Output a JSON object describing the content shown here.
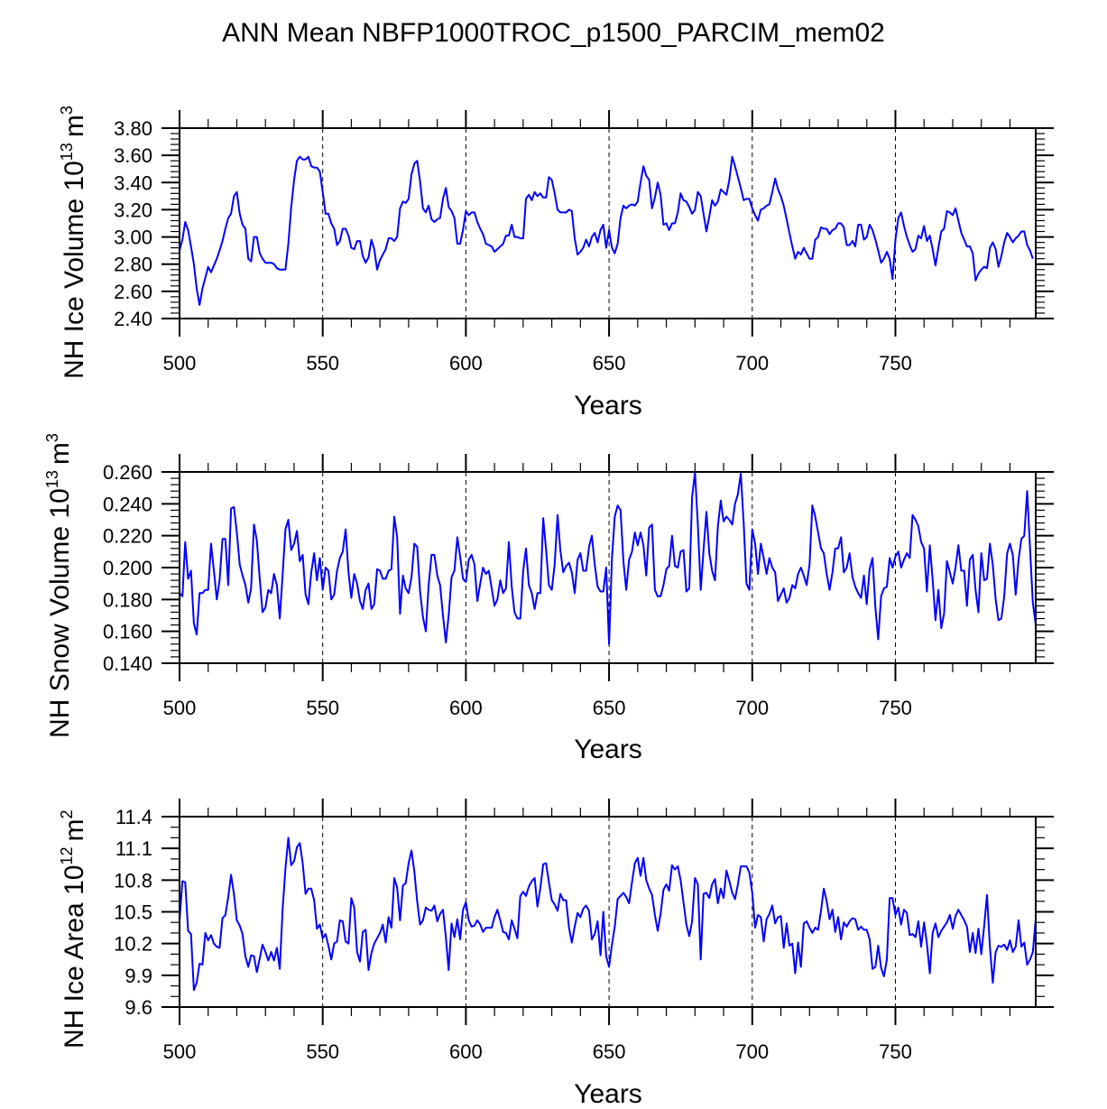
{
  "title": "ANN Mean NBFP1000TROC_p1500_PARCIM_mem02",
  "line_color": "#0000ff",
  "chart_data": [
    {
      "type": "line",
      "name": "ice-volume",
      "ylabel": {
        "text": "NH Ice Volume 10",
        "exponent": "13",
        "unit": "m",
        "unit_exponent": "3"
      },
      "xlabel": "Years",
      "xlim": [
        500,
        799
      ],
      "ylim": [
        2.4,
        3.8
      ],
      "xticks": [
        500,
        550,
        600,
        650,
        700,
        750
      ],
      "xtick_labels": [
        "500",
        "550",
        "600",
        "650",
        "700",
        "750"
      ],
      "yticks": [
        2.4,
        2.6,
        2.8,
        3.0,
        3.2,
        3.4,
        3.6,
        3.8
      ],
      "ytick_labels": [
        "2.40",
        "2.60",
        "2.80",
        "3.00",
        "3.20",
        "3.40",
        "3.60",
        "3.80"
      ],
      "yminor_step": 0.04,
      "grid": "dashed vertical at major x ticks",
      "x_start": 500,
      "values": [
        2.9,
        2.98,
        3.11,
        3.05,
        2.93,
        2.8,
        2.62,
        2.5,
        2.62,
        2.7,
        2.78,
        2.74,
        2.79,
        2.84,
        2.9,
        2.97,
        3.06,
        3.14,
        3.17,
        3.3,
        3.33,
        3.17,
        3.09,
        3.06,
        2.84,
        2.82,
        3.0,
        3.0,
        2.88,
        2.84,
        2.81,
        2.81,
        2.81,
        2.8,
        2.77,
        2.76,
        2.76,
        2.76,
        2.95,
        3.22,
        3.42,
        3.56,
        3.59,
        3.57,
        3.57,
        3.59,
        3.52,
        3.51,
        3.51,
        3.48,
        3.33,
        3.17,
        3.17,
        3.1,
        3.06,
        2.94,
        2.97,
        3.06,
        3.06,
        3.01,
        2.92,
        2.91,
        2.97,
        2.97,
        2.86,
        2.81,
        2.85,
        2.98,
        2.91,
        2.76,
        2.83,
        2.87,
        2.91,
        2.99,
        2.99,
        2.97,
        3.0,
        3.21,
        3.26,
        3.25,
        3.28,
        3.46,
        3.54,
        3.56,
        3.41,
        3.21,
        3.18,
        3.23,
        3.13,
        3.11,
        3.13,
        3.14,
        3.28,
        3.36,
        3.22,
        3.19,
        3.14,
        2.95,
        2.95,
        3.05,
        3.19,
        3.16,
        3.18,
        3.18,
        3.11,
        3.06,
        3.02,
        2.95,
        2.94,
        2.93,
        2.89,
        2.91,
        2.93,
        2.95,
        3.01,
        3.01,
        3.09,
        3.0,
        3.0,
        2.99,
        2.99,
        3.28,
        3.31,
        3.27,
        3.33,
        3.3,
        3.32,
        3.29,
        3.29,
        3.44,
        3.42,
        3.32,
        3.2,
        3.18,
        3.18,
        3.18,
        3.2,
        3.19,
        2.99,
        2.87,
        2.89,
        2.92,
        2.98,
        2.93,
        3.0,
        3.03,
        2.96,
        3.05,
        3.09,
        2.92,
        3.05,
        2.92,
        2.88,
        2.95,
        3.14,
        3.23,
        3.21,
        3.23,
        3.24,
        3.23,
        3.26,
        3.4,
        3.52,
        3.45,
        3.42,
        3.21,
        3.29,
        3.4,
        3.31,
        3.09,
        3.1,
        3.05,
        3.1,
        3.1,
        3.18,
        3.32,
        3.27,
        3.26,
        3.22,
        3.17,
        3.2,
        3.33,
        3.3,
        3.17,
        3.04,
        3.15,
        3.27,
        3.23,
        3.26,
        3.35,
        3.33,
        3.31,
        3.42,
        3.59,
        3.52,
        3.44,
        3.36,
        3.27,
        3.28,
        3.28,
        3.21,
        3.16,
        3.12,
        3.2,
        3.21,
        3.23,
        3.24,
        3.33,
        3.43,
        3.35,
        3.3,
        3.23,
        3.13,
        3.03,
        2.93,
        2.84,
        2.89,
        2.87,
        2.92,
        2.88,
        2.84,
        2.84,
        2.98,
        3.0,
        3.07,
        3.06,
        3.06,
        3.02,
        3.05,
        3.06,
        3.1,
        3.1,
        3.07,
        2.94,
        2.94,
        2.97,
        2.93,
        3.09,
        3.09,
        2.98,
        3.0,
        3.09,
        3.05,
        2.98,
        2.9,
        2.81,
        2.84,
        2.89,
        2.84,
        2.69,
        2.98,
        3.14,
        3.18,
        3.08,
        3.0,
        2.94,
        2.89,
        2.91,
        3.01,
        2.99,
        3.08,
        2.97,
        3.01,
        2.91,
        2.79,
        2.92,
        3.04,
        3.06,
        3.19,
        3.18,
        3.16,
        3.21,
        3.12,
        3.03,
        2.98,
        2.93,
        2.93,
        2.88,
        2.68,
        2.73,
        2.76,
        2.78,
        2.77,
        2.92,
        2.96,
        2.91,
        2.78,
        2.86,
        2.96,
        3.03,
        3.0,
        2.96,
        2.99,
        3.01,
        3.04,
        3.04,
        2.94,
        2.9,
        2.84
      ]
    },
    {
      "type": "line",
      "name": "snow-volume",
      "ylabel": {
        "text": "NH Snow Volume 10",
        "exponent": "13",
        "unit": "m",
        "unit_exponent": "3"
      },
      "xlabel": "Years",
      "xlim": [
        500,
        799
      ],
      "ylim": [
        0.14,
        0.26
      ],
      "xticks": [
        500,
        550,
        600,
        650,
        700,
        750
      ],
      "xtick_labels": [
        "500",
        "550",
        "600",
        "650",
        "700",
        "750"
      ],
      "yticks": [
        0.14,
        0.16,
        0.18,
        0.2,
        0.22,
        0.24,
        0.26
      ],
      "ytick_labels": [
        "0.140",
        "0.160",
        "0.180",
        "0.200",
        "0.220",
        "0.240",
        "0.260"
      ],
      "yminor_step": 0.004,
      "grid": "dashed vertical at major x ticks",
      "x_start": 500,
      "values": [
        0.184,
        0.182,
        0.216,
        0.193,
        0.198,
        0.165,
        0.158,
        0.184,
        0.184,
        0.186,
        0.186,
        0.215,
        0.198,
        0.18,
        0.192,
        0.218,
        0.218,
        0.189,
        0.237,
        0.238,
        0.222,
        0.202,
        0.195,
        0.189,
        0.178,
        0.187,
        0.227,
        0.217,
        0.193,
        0.172,
        0.175,
        0.186,
        0.184,
        0.196,
        0.189,
        0.168,
        0.196,
        0.224,
        0.23,
        0.211,
        0.215,
        0.223,
        0.204,
        0.208,
        0.183,
        0.177,
        0.197,
        0.209,
        0.192,
        0.206,
        0.186,
        0.2,
        0.198,
        0.18,
        0.183,
        0.198,
        0.206,
        0.21,
        0.224,
        0.197,
        0.181,
        0.196,
        0.19,
        0.179,
        0.174,
        0.186,
        0.19,
        0.174,
        0.177,
        0.199,
        0.198,
        0.193,
        0.193,
        0.198,
        0.199,
        0.232,
        0.219,
        0.171,
        0.195,
        0.187,
        0.184,
        0.194,
        0.215,
        0.213,
        0.185,
        0.169,
        0.16,
        0.189,
        0.208,
        0.208,
        0.195,
        0.189,
        0.17,
        0.153,
        0.17,
        0.194,
        0.198,
        0.219,
        0.207,
        0.193,
        0.191,
        0.205,
        0.208,
        0.202,
        0.179,
        0.19,
        0.2,
        0.196,
        0.198,
        0.187,
        0.176,
        0.18,
        0.192,
        0.184,
        0.187,
        0.216,
        0.188,
        0.172,
        0.168,
        0.168,
        0.198,
        0.212,
        0.189,
        0.184,
        0.174,
        0.184,
        0.184,
        0.231,
        0.211,
        0.189,
        0.186,
        0.202,
        0.233,
        0.211,
        0.197,
        0.201,
        0.203,
        0.197,
        0.184,
        0.205,
        0.209,
        0.198,
        0.198,
        0.213,
        0.22,
        0.202,
        0.188,
        0.185,
        0.185,
        0.2,
        0.152,
        0.206,
        0.232,
        0.239,
        0.236,
        0.204,
        0.186,
        0.205,
        0.21,
        0.222,
        0.214,
        0.222,
        0.214,
        0.195,
        0.225,
        0.227,
        0.186,
        0.182,
        0.182,
        0.189,
        0.199,
        0.201,
        0.22,
        0.201,
        0.2,
        0.21,
        0.211,
        0.185,
        0.187,
        0.244,
        0.26,
        0.227,
        0.186,
        0.211,
        0.235,
        0.209,
        0.198,
        0.192,
        0.226,
        0.242,
        0.229,
        0.232,
        0.23,
        0.227,
        0.24,
        0.246,
        0.259,
        0.228,
        0.19,
        0.186,
        0.224,
        0.215,
        0.196,
        0.215,
        0.206,
        0.196,
        0.206,
        0.2,
        0.197,
        0.179,
        0.183,
        0.187,
        0.178,
        0.181,
        0.189,
        0.187,
        0.196,
        0.2,
        0.195,
        0.189,
        0.202,
        0.239,
        0.232,
        0.222,
        0.212,
        0.209,
        0.196,
        0.186,
        0.197,
        0.212,
        0.212,
        0.219,
        0.197,
        0.2,
        0.209,
        0.194,
        0.188,
        0.184,
        0.181,
        0.195,
        0.177,
        0.199,
        0.206,
        0.175,
        0.155,
        0.182,
        0.187,
        0.188,
        0.206,
        0.2,
        0.207,
        0.21,
        0.2,
        0.205,
        0.209,
        0.206,
        0.233,
        0.23,
        0.226,
        0.216,
        0.212,
        0.185,
        0.214,
        0.193,
        0.167,
        0.186,
        0.162,
        0.171,
        0.204,
        0.197,
        0.19,
        0.2,
        0.214,
        0.198,
        0.198,
        0.176,
        0.205,
        0.208,
        0.186,
        0.172,
        0.209,
        0.192,
        0.193,
        0.215,
        0.202,
        0.18,
        0.167,
        0.168,
        0.182,
        0.209,
        0.215,
        0.208,
        0.183,
        0.205,
        0.218,
        0.22,
        0.248,
        0.212,
        0.178,
        0.164
      ]
    },
    {
      "type": "line",
      "name": "ice-area",
      "ylabel": {
        "text": "NH Ice Area 10",
        "exponent": "12",
        "unit": "m",
        "unit_exponent": "2"
      },
      "xlabel": "Years",
      "xlim": [
        500,
        799
      ],
      "ylim": [
        9.6,
        11.4
      ],
      "xticks": [
        500,
        550,
        600,
        650,
        700,
        750
      ],
      "xtick_labels": [
        "500",
        "550",
        "600",
        "650",
        "700",
        "750"
      ],
      "yticks": [
        9.6,
        9.9,
        10.2,
        10.5,
        10.8,
        11.1,
        11.4
      ],
      "ytick_labels": [
        "9.6",
        "9.9",
        "10.2",
        "10.5",
        "10.8",
        "11.1",
        "11.4"
      ],
      "yminor_step": 0.1,
      "grid": "dashed vertical at major x ticks",
      "x_start": 500,
      "values": [
        10.42,
        10.79,
        10.78,
        10.32,
        10.29,
        9.76,
        9.83,
        10.01,
        10.0,
        10.3,
        10.23,
        10.28,
        10.2,
        10.17,
        10.16,
        10.44,
        10.47,
        10.64,
        10.85,
        10.67,
        10.42,
        10.37,
        10.29,
        10.08,
        9.98,
        10.09,
        10.08,
        9.93,
        10.06,
        10.19,
        10.12,
        10.04,
        10.12,
        10.04,
        10.16,
        9.96,
        10.53,
        10.91,
        11.2,
        10.94,
        10.98,
        11.11,
        11.15,
        10.96,
        10.67,
        10.72,
        10.72,
        10.61,
        10.34,
        10.38,
        10.25,
        10.29,
        10.18,
        10.05,
        10.2,
        10.22,
        10.42,
        10.41,
        10.22,
        10.2,
        10.63,
        10.54,
        10.12,
        10.03,
        10.31,
        10.33,
        9.95,
        10.11,
        10.2,
        10.25,
        10.3,
        10.38,
        10.21,
        10.45,
        10.35,
        10.82,
        10.73,
        10.42,
        10.75,
        10.77,
        10.96,
        11.08,
        10.88,
        10.6,
        10.38,
        10.42,
        10.54,
        10.52,
        10.51,
        10.56,
        10.41,
        10.48,
        10.52,
        10.26,
        9.95,
        10.39,
        10.26,
        10.43,
        10.24,
        10.52,
        10.59,
        10.42,
        10.36,
        10.37,
        10.42,
        10.38,
        10.31,
        10.35,
        10.35,
        10.35,
        10.45,
        10.52,
        10.42,
        10.31,
        10.3,
        10.24,
        10.42,
        10.34,
        10.25,
        10.65,
        10.69,
        10.65,
        10.74,
        10.79,
        10.82,
        10.55,
        10.72,
        10.95,
        10.96,
        10.78,
        10.61,
        10.57,
        10.51,
        10.67,
        10.61,
        10.61,
        10.35,
        10.21,
        10.36,
        10.49,
        10.45,
        10.53,
        10.56,
        10.51,
        10.24,
        10.29,
        10.41,
        10.09,
        10.5,
        10.08,
        9.98,
        10.19,
        10.36,
        10.62,
        10.65,
        10.68,
        10.64,
        10.58,
        10.78,
        10.96,
        11.01,
        10.84,
        11.01,
        10.8,
        10.72,
        10.66,
        10.47,
        10.32,
        10.48,
        10.71,
        10.76,
        10.7,
        10.94,
        10.9,
        10.93,
        10.8,
        10.59,
        10.38,
        10.27,
        10.41,
        10.82,
        10.76,
        10.05,
        10.67,
        10.68,
        10.63,
        10.76,
        10.81,
        10.58,
        10.72,
        10.63,
        10.89,
        10.79,
        10.68,
        10.62,
        10.76,
        10.93,
        10.93,
        10.93,
        10.87,
        10.68,
        10.35,
        10.47,
        10.45,
        10.22,
        10.43,
        10.48,
        10.56,
        10.39,
        10.45,
        10.46,
        10.16,
        10.39,
        10.18,
        10.2,
        9.92,
        10.21,
        9.98,
        10.39,
        10.41,
        10.35,
        10.3,
        10.35,
        10.33,
        10.51,
        10.72,
        10.6,
        10.43,
        10.52,
        10.31,
        10.45,
        10.24,
        10.4,
        10.36,
        10.41,
        10.44,
        10.43,
        10.33,
        10.36,
        10.33,
        10.33,
        10.24,
        9.96,
        9.98,
        10.18,
        9.97,
        9.89,
        10.05,
        10.63,
        10.63,
        10.47,
        10.54,
        10.38,
        10.52,
        10.49,
        10.28,
        10.29,
        10.26,
        10.41,
        10.17,
        10.4,
        10.2,
        9.92,
        10.3,
        10.39,
        10.26,
        10.32,
        10.36,
        10.4,
        10.47,
        10.34,
        10.46,
        10.52,
        10.47,
        10.42,
        10.36,
        10.12,
        10.3,
        10.11,
        10.34,
        10.1,
        10.37,
        10.66,
        10.17,
        9.83,
        10.12,
        10.18,
        10.17,
        10.19,
        10.14,
        10.23,
        10.12,
        10.17,
        10.42,
        10.17,
        10.21,
        10.0,
        10.05,
        10.12,
        10.43
      ]
    }
  ]
}
